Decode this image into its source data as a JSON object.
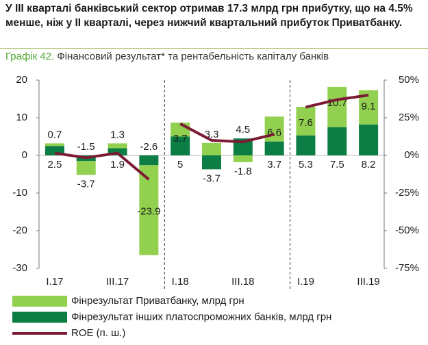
{
  "chart_data": {
    "type": "bar",
    "title": "У III кварталі банківський сектор отримав 17.3 млрд грн прибутку, що на 4.5% менше, ніж у II кварталі, через нижчий квартальний прибуток Приватбанку.",
    "subtitle_label": "Графік 42.",
    "subtitle": "Фінансовий результат* та рентабельність капіталу банків",
    "categories": [
      "I.17",
      null,
      "III.17",
      null,
      "I.18",
      null,
      "III.18",
      null,
      "I.19",
      null,
      "III.19"
    ],
    "year_groups": [
      4,
      4,
      3
    ],
    "stacked": true,
    "series": [
      {
        "name": "Фінрезультат Приватбанку, млрд грн",
        "color": "#92d050",
        "values": [
          0.7,
          -3.7,
          1.3,
          -23.9,
          3.7,
          3.3,
          -1.8,
          6.6,
          7.6,
          10.7,
          9.1
        ]
      },
      {
        "name": "Фінрезультат інших платоспроможних банків, млрд грн",
        "color": "#0b7d45",
        "values": [
          2.5,
          -1.5,
          1.9,
          -2.6,
          5.0,
          -3.7,
          4.5,
          3.7,
          5.3,
          7.5,
          8.2
        ]
      },
      {
        "name": "ROE (п. ш.)",
        "color": "#7b1c34",
        "type": "line",
        "axis": "y2",
        "values": [
          1.5,
          -1.5,
          1.5,
          -16,
          21,
          10,
          9,
          14,
          32,
          37,
          40
        ]
      }
    ],
    "ylim": [
      -30,
      20
    ],
    "yticks": [
      -30,
      -20,
      -10,
      0,
      10,
      20
    ],
    "y2lim": [
      -75,
      50
    ],
    "y2ticks": [
      {
        "value": -75,
        "label": "-75%"
      },
      {
        "value": -50,
        "label": "-50%"
      },
      {
        "value": -25,
        "label": "-25%"
      },
      {
        "value": 0,
        "label": "0%"
      },
      {
        "value": 25,
        "label": "25%"
      },
      {
        "value": 50,
        "label": "50%"
      }
    ]
  }
}
